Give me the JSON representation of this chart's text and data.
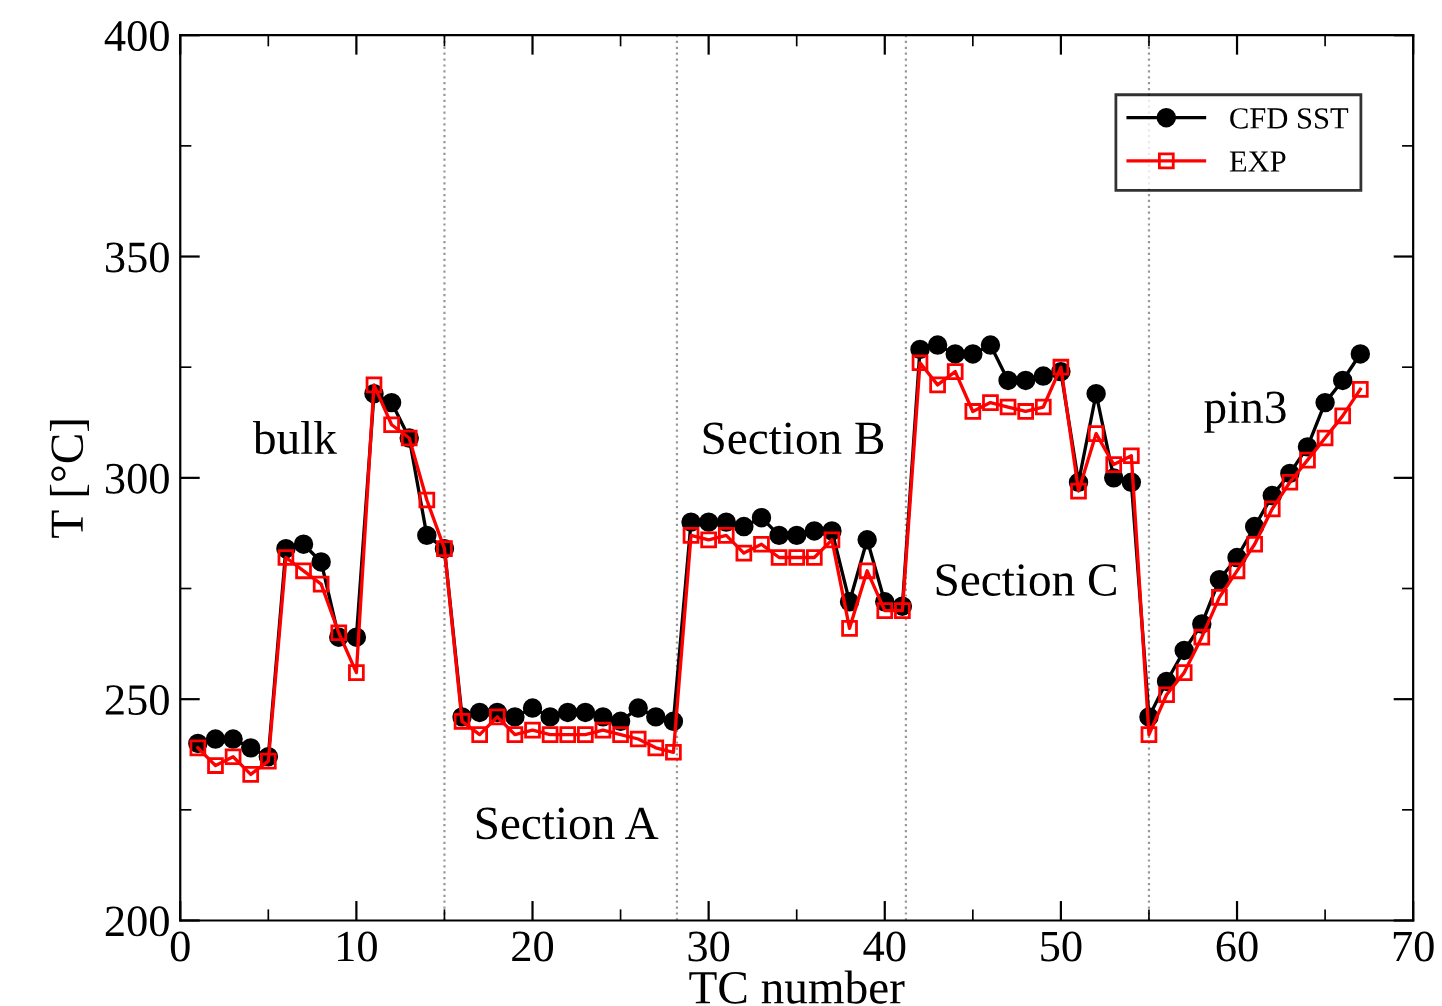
{
  "chart_data": {
    "type": "line",
    "xlabel": "TC number",
    "ylabel": "T [°C]",
    "x": [
      1,
      2,
      3,
      4,
      5,
      6,
      7,
      8,
      9,
      10,
      11,
      12,
      13,
      14,
      15,
      16,
      17,
      18,
      19,
      20,
      21,
      22,
      23,
      24,
      25,
      26,
      27,
      28,
      29,
      30,
      31,
      32,
      33,
      34,
      35,
      36,
      37,
      38,
      39,
      40,
      41,
      42,
      43,
      44,
      45,
      46,
      47,
      48,
      49,
      50,
      51,
      52,
      53,
      54,
      55,
      56,
      57,
      58,
      59,
      60,
      61,
      62,
      63,
      64,
      65,
      66,
      67
    ],
    "series": [
      {
        "name": "CFD SST",
        "color": "#000000",
        "marker": "circle",
        "values": [
          240,
          241,
          241,
          239,
          237,
          284,
          285,
          281,
          264,
          264,
          319,
          317,
          309,
          287,
          284,
          246,
          247,
          247,
          246,
          248,
          246,
          247,
          247,
          246,
          245,
          248,
          246,
          245,
          290,
          290,
          290,
          289,
          291,
          287,
          287,
          288,
          288,
          272,
          286,
          272,
          271,
          329,
          330,
          328,
          328,
          330,
          322,
          322,
          323,
          324,
          299,
          319,
          300,
          299,
          246,
          254,
          261,
          267,
          277,
          282,
          289,
          296,
          301,
          307,
          317,
          322,
          328
        ]
      },
      {
        "name": "EXP",
        "color": "#ff0000",
        "marker": "square",
        "values": [
          239,
          235,
          237,
          233,
          236,
          282,
          279,
          276,
          265,
          256,
          321,
          312,
          309,
          295,
          284,
          245,
          242,
          246,
          242,
          243,
          242,
          242,
          242,
          243,
          242,
          241,
          239,
          238,
          287,
          286,
          287,
          283,
          285,
          282,
          282,
          282,
          286,
          266,
          279,
          270,
          270,
          326,
          321,
          324,
          315,
          317,
          316,
          315,
          316,
          325,
          297,
          310,
          303,
          305,
          242,
          251,
          256,
          264,
          273,
          279,
          285,
          293,
          299,
          304,
          309,
          314,
          320
        ]
      }
    ],
    "xlim": [
      0,
      70
    ],
    "xticks": [
      0,
      10,
      20,
      30,
      40,
      50,
      60,
      70
    ],
    "ylim": [
      200,
      400
    ],
    "yticks": [
      200,
      250,
      300,
      350,
      400
    ],
    "ref_lines": [
      {
        "axis": "x",
        "value": 15,
        "color": "#999999",
        "line_style": "dotted"
      },
      {
        "axis": "x",
        "value": 28.2,
        "color": "#999999",
        "line_style": "dotted"
      },
      {
        "axis": "x",
        "value": 41.2,
        "color": "#999999",
        "line_style": "dotted"
      },
      {
        "axis": "x",
        "value": 55,
        "color": "#999999",
        "line_style": "dotted"
      }
    ],
    "annotations": [
      "bulk",
      "Section A",
      "Section B",
      "Section C",
      "pin3"
    ],
    "legend": "top right",
    "grid": false,
    "line_style": "solid"
  }
}
